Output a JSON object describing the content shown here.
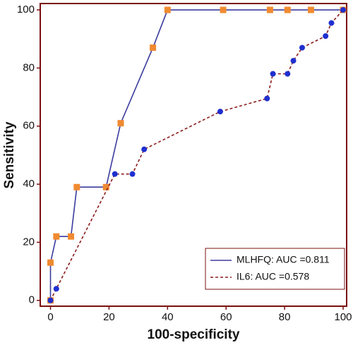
{
  "chart_data": {
    "type": "line",
    "x_label": "100-specificity",
    "y_label": "Sensitivity",
    "xlim": [
      -3.5,
      101.2
    ],
    "ylim": [
      -2,
      102.2
    ],
    "xticks": [
      0,
      20,
      40,
      60,
      80,
      100
    ],
    "yticks": [
      0,
      20,
      40,
      60,
      80,
      100
    ],
    "grid": false,
    "legend_position": "lower right",
    "series": [
      {
        "name": "MLHFQ: AUC =0.811",
        "color": "#3b3b9e",
        "marker": "square",
        "marker_color": "#f08a30",
        "line_style": "solid",
        "x": [
          0,
          0,
          2,
          7,
          9,
          19,
          24,
          35,
          40,
          59,
          75,
          81,
          89,
          100
        ],
        "values": [
          0,
          13,
          22,
          22,
          39,
          39,
          61,
          87,
          100,
          100,
          100,
          100,
          100,
          100
        ]
      },
      {
        "name": "IL6: AUC =0.578",
        "color": "#8b1c1c",
        "marker": "circle",
        "marker_color": "#1f2fcf",
        "line_style": "dashed",
        "x": [
          0,
          2,
          22,
          28,
          32,
          58,
          74,
          76,
          81,
          83,
          86,
          94,
          96,
          100
        ],
        "values": [
          0,
          4,
          43.5,
          43.5,
          52,
          65,
          69.5,
          78,
          78,
          82.5,
          87,
          91,
          95.5,
          100
        ]
      }
    ]
  }
}
